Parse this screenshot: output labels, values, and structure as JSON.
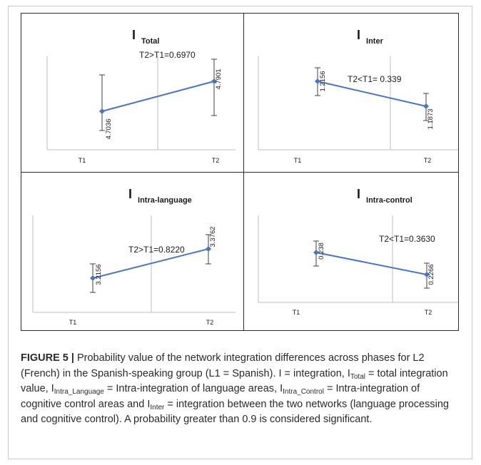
{
  "figure": {
    "label": "FIGURE 5 |",
    "caption_main": " Probability value of the network integration differences across phases for L2 (French) in the Spanish-speaking group (L1 = Spanish).",
    "caption_def_1": " I = integration, I",
    "caption_sub_total": "Total",
    "caption_def_2": " = total integration value, I",
    "caption_sub_lang": "Intra_Language",
    "caption_def_3": " = Intra-integration of language areas, I",
    "caption_sub_control": "Intra_Control",
    "caption_def_4": " = Intra-integration of cognitive control areas and I",
    "caption_sub_inter": "Inter",
    "caption_def_5": " = integration between the two networks (language processing and cognitive control). A probability greater than 0.9 is considered significant."
  },
  "colors": {
    "series": "#4a76c0",
    "errorbar": "#404040",
    "axis": "#bfbfbf",
    "text": "#1a1a1a"
  },
  "chart_data": [
    {
      "type": "line",
      "title_main": "I",
      "title_sub": "Total",
      "categories": [
        "T1",
        "T2"
      ],
      "values": [
        4.7036,
        4.7901
      ],
      "value_labels": [
        "4.7036",
        "4.7901"
      ],
      "annotation": "T2>T1=0.6970"
    },
    {
      "type": "line",
      "title_main": "I",
      "title_sub": "Inter",
      "categories": [
        "T1",
        "T2"
      ],
      "values": [
        1.2156,
        1.1873
      ],
      "value_labels": [
        "1.2156",
        "1.1873"
      ],
      "annotation": "T2<T1= 0.339"
    },
    {
      "type": "line",
      "title_main": "I",
      "title_sub": "Intra-language",
      "categories": [
        "T1",
        "T2"
      ],
      "values": [
        3.2156,
        3.3762
      ],
      "value_labels": [
        "3.2156",
        "3.3762"
      ],
      "annotation": "T2>T1=0.8220"
    },
    {
      "type": "line",
      "title_main": "I",
      "title_sub": "Intra-control",
      "categories": [
        "T1",
        "T2"
      ],
      "values": [
        0.238,
        0.2266
      ],
      "value_labels": [
        "0.238",
        "0.2266"
      ],
      "annotation": "T2<T1=0.3630"
    }
  ]
}
